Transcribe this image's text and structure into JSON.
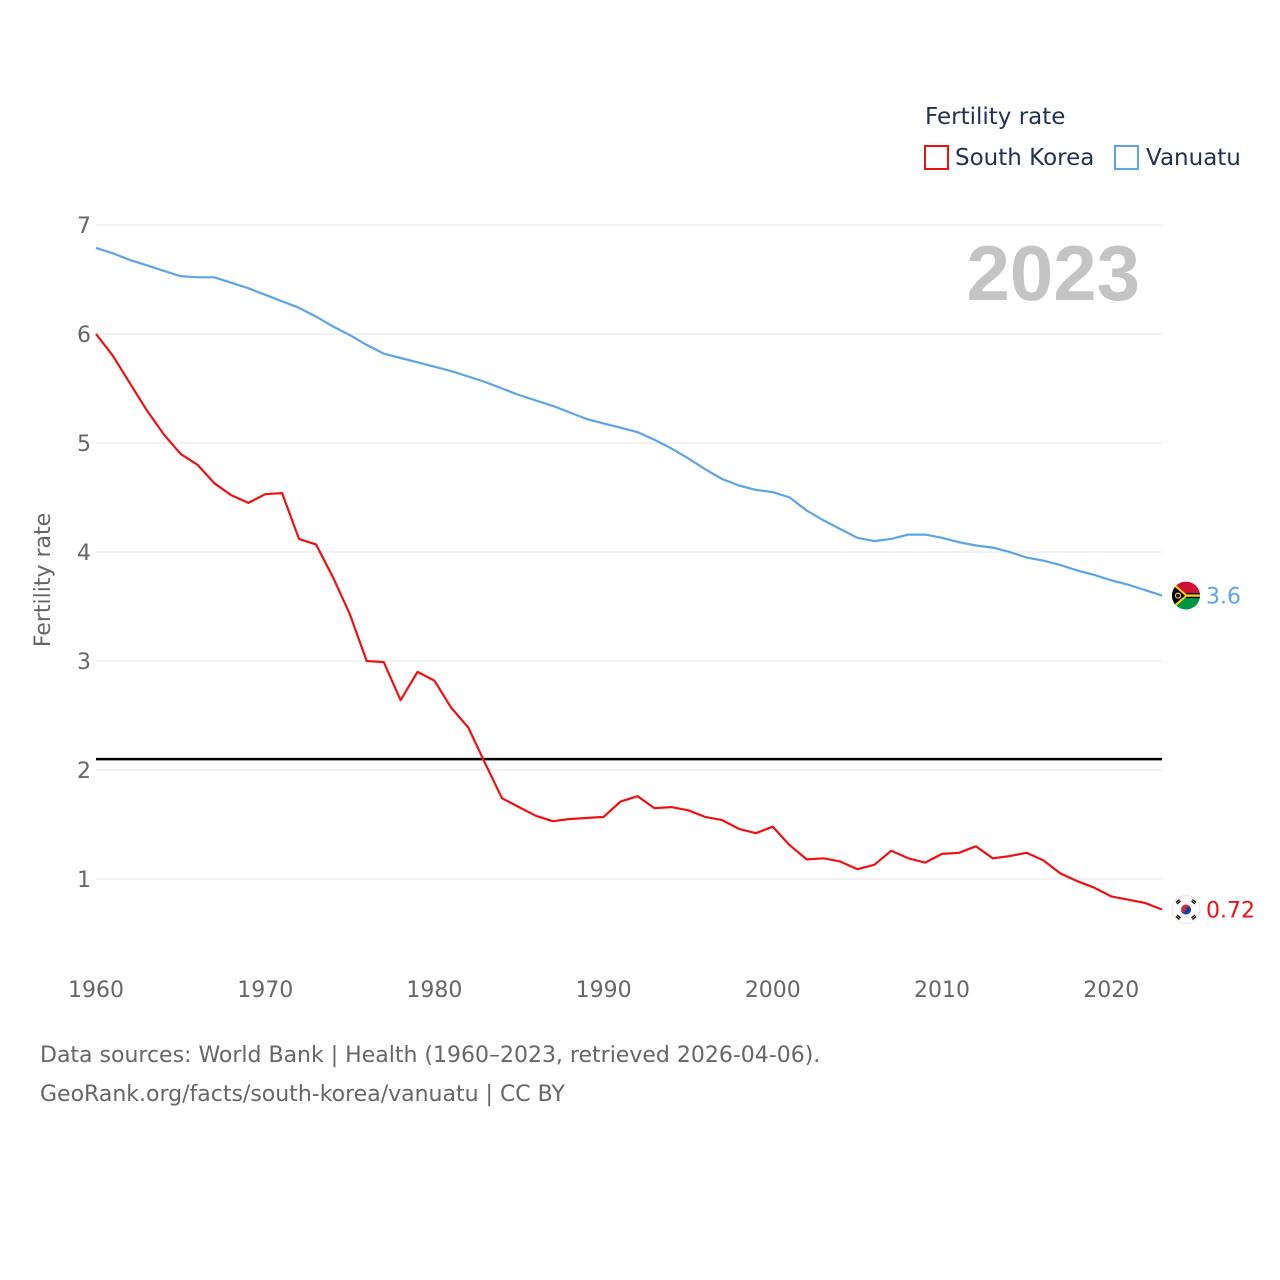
{
  "chart_data": {
    "type": "line",
    "title": "Fertility rate",
    "ylabel": "Fertility rate",
    "xlabel": "",
    "xlim": [
      1960,
      2023
    ],
    "ylim": [
      0,
      7
    ],
    "x_ticks": [
      1960,
      1970,
      1980,
      1990,
      2000,
      2010,
      2020
    ],
    "y_ticks": [
      1,
      2,
      3,
      4,
      5,
      6,
      7
    ],
    "grid": true,
    "legend_position": "top-right",
    "current_year_label": "2023",
    "reference_line": {
      "y": 2.1,
      "color": "#000000"
    },
    "series": [
      {
        "name": "South Korea",
        "color": "#ee1111",
        "end_label": "0.72",
        "flag": "south-korea-flag-icon",
        "x": [
          1960,
          1961,
          1962,
          1963,
          1964,
          1965,
          1966,
          1967,
          1968,
          1969,
          1970,
          1971,
          1972,
          1973,
          1974,
          1975,
          1976,
          1977,
          1978,
          1979,
          1980,
          1981,
          1982,
          1983,
          1984,
          1985,
          1986,
          1987,
          1988,
          1989,
          1990,
          1991,
          1992,
          1993,
          1994,
          1995,
          1996,
          1997,
          1998,
          1999,
          2000,
          2001,
          2002,
          2003,
          2004,
          2005,
          2006,
          2007,
          2008,
          2009,
          2010,
          2011,
          2012,
          2013,
          2014,
          2015,
          2016,
          2017,
          2018,
          2019,
          2020,
          2021,
          2022,
          2023
        ],
        "values": [
          6.0,
          5.8,
          5.55,
          5.3,
          5.08,
          4.9,
          4.8,
          4.63,
          4.52,
          4.45,
          4.53,
          4.54,
          4.12,
          4.07,
          3.77,
          3.43,
          3.0,
          2.99,
          2.64,
          2.9,
          2.82,
          2.57,
          2.39,
          2.06,
          1.74,
          1.66,
          1.58,
          1.53,
          1.55,
          1.56,
          1.57,
          1.71,
          1.76,
          1.65,
          1.66,
          1.63,
          1.57,
          1.54,
          1.46,
          1.42,
          1.48,
          1.31,
          1.18,
          1.19,
          1.16,
          1.09,
          1.13,
          1.26,
          1.19,
          1.15,
          1.23,
          1.24,
          1.3,
          1.19,
          1.21,
          1.24,
          1.17,
          1.05,
          0.98,
          0.92,
          0.84,
          0.81,
          0.78,
          0.72
        ]
      },
      {
        "name": "Vanuatu",
        "color": "#5ba4e5",
        "end_label": "3.6",
        "flag": "vanuatu-flag-icon",
        "x": [
          1960,
          1961,
          1962,
          1963,
          1964,
          1965,
          1966,
          1967,
          1968,
          1969,
          1970,
          1971,
          1972,
          1973,
          1974,
          1975,
          1976,
          1977,
          1978,
          1979,
          1980,
          1981,
          1982,
          1983,
          1984,
          1985,
          1986,
          1987,
          1988,
          1989,
          1990,
          1991,
          1992,
          1993,
          1994,
          1995,
          1996,
          1997,
          1998,
          1999,
          2000,
          2001,
          2002,
          2003,
          2004,
          2005,
          2006,
          2007,
          2008,
          2009,
          2010,
          2011,
          2012,
          2013,
          2014,
          2015,
          2016,
          2017,
          2018,
          2019,
          2020,
          2021,
          2022,
          2023
        ],
        "values": [
          6.79,
          6.74,
          6.68,
          6.63,
          6.58,
          6.53,
          6.52,
          6.52,
          6.47,
          6.42,
          6.36,
          6.3,
          6.24,
          6.16,
          6.07,
          5.99,
          5.9,
          5.82,
          5.78,
          5.74,
          5.7,
          5.66,
          5.61,
          5.56,
          5.5,
          5.44,
          5.39,
          5.34,
          5.28,
          5.22,
          5.18,
          5.14,
          5.1,
          5.03,
          4.95,
          4.86,
          4.76,
          4.67,
          4.61,
          4.57,
          4.55,
          4.5,
          4.38,
          4.29,
          4.21,
          4.13,
          4.1,
          4.12,
          4.16,
          4.16,
          4.13,
          4.09,
          4.06,
          4.04,
          4.0,
          3.95,
          3.92,
          3.88,
          3.83,
          3.79,
          3.74,
          3.7,
          3.65,
          3.6
        ]
      }
    ]
  },
  "footer": {
    "sources": "Data sources: World Bank | Health (1960–2023, retrieved 2026-04-06).",
    "credit": "GeoRank.org/facts/south-korea/vanuatu | CC BY"
  }
}
